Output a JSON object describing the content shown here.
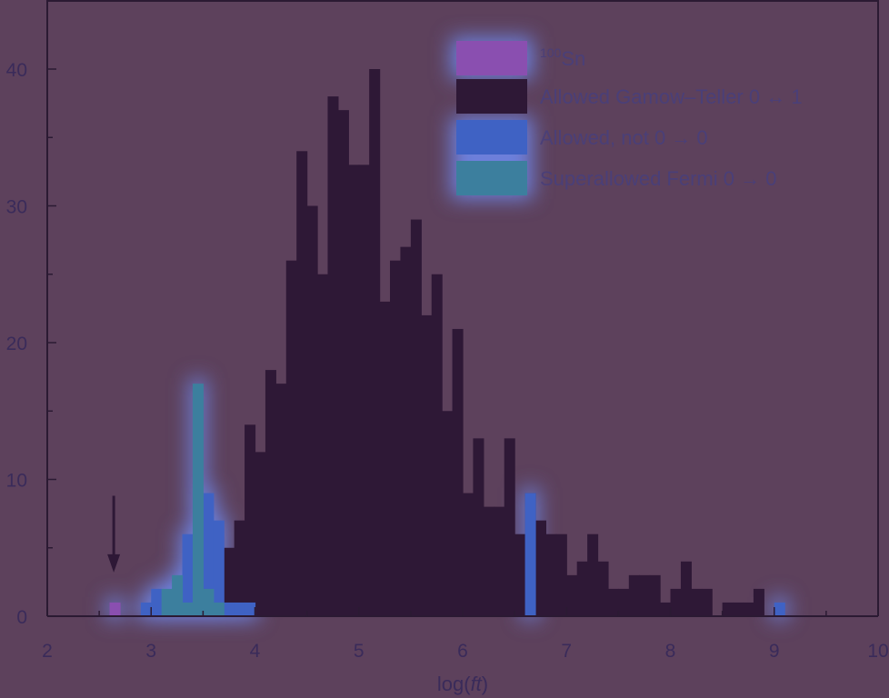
{
  "colors": {
    "background": "#5d415c",
    "axis": "#2b1a33",
    "text": "#3a2b5a",
    "sn100": "#8a4fb0",
    "allowed_gt": "#2e1836",
    "allowed_not00": "#3f62c4",
    "superallowed": "#3c7f9e",
    "glow": "#6f86e8"
  },
  "chart_data": {
    "type": "bar",
    "xlabel": "log(ft)",
    "ylabel": "",
    "xlim": [
      2,
      10
    ],
    "ylim": [
      0,
      40
    ],
    "xticks": [
      2,
      3,
      4,
      5,
      6,
      7,
      8,
      9,
      10
    ],
    "yticks": [
      0,
      10,
      20,
      30,
      40
    ],
    "bin_width": 0.1,
    "legend_position": "top-right",
    "legend": [
      {
        "key": "sn100",
        "sup": "100",
        "label": "Sn"
      },
      {
        "key": "allowed_gt",
        "sup": "",
        "label": "Allowed Gamow–Teller 0 ↔ 1"
      },
      {
        "key": "allowed_not00",
        "sup": "",
        "label": "Allowed, not 0 → 0"
      },
      {
        "key": "superallowed",
        "sup": "",
        "label": "Superallowed Fermi 0 → 0"
      }
    ],
    "series": [
      {
        "key": "sn100",
        "name": "100Sn",
        "bins": [
          [
            2.6,
            1
          ]
        ]
      },
      {
        "key": "allowed_gt",
        "name": "Allowed Gamow–Teller 0 ↔ 1",
        "bins": [
          [
            3.7,
            5
          ],
          [
            3.8,
            7
          ],
          [
            3.9,
            14
          ],
          [
            4.0,
            12
          ],
          [
            4.1,
            18
          ],
          [
            4.2,
            17
          ],
          [
            4.3,
            26
          ],
          [
            4.4,
            34
          ],
          [
            4.5,
            30
          ],
          [
            4.6,
            25
          ],
          [
            4.7,
            38
          ],
          [
            4.8,
            37
          ],
          [
            4.9,
            33
          ],
          [
            5.0,
            33
          ],
          [
            5.1,
            40
          ],
          [
            5.2,
            23
          ],
          [
            5.3,
            26
          ],
          [
            5.4,
            27
          ],
          [
            5.5,
            29
          ],
          [
            5.6,
            22
          ],
          [
            5.7,
            25
          ],
          [
            5.8,
            15
          ],
          [
            5.9,
            21
          ],
          [
            6.0,
            9
          ],
          [
            6.1,
            13
          ],
          [
            6.2,
            8
          ],
          [
            6.3,
            8
          ],
          [
            6.4,
            13
          ],
          [
            6.5,
            6
          ],
          [
            6.6,
            9
          ],
          [
            6.7,
            7
          ],
          [
            6.8,
            6
          ],
          [
            6.9,
            6
          ],
          [
            7.0,
            3
          ],
          [
            7.1,
            4
          ],
          [
            7.2,
            6
          ],
          [
            7.3,
            4
          ],
          [
            7.4,
            2
          ],
          [
            7.5,
            2
          ],
          [
            7.6,
            3
          ],
          [
            7.7,
            3
          ],
          [
            7.8,
            3
          ],
          [
            7.9,
            1
          ],
          [
            8.0,
            2
          ],
          [
            8.1,
            4
          ],
          [
            8.2,
            2
          ],
          [
            8.3,
            2
          ],
          [
            8.5,
            1
          ],
          [
            8.6,
            1
          ],
          [
            8.7,
            1
          ],
          [
            8.8,
            2
          ]
        ]
      },
      {
        "key": "allowed_not00",
        "name": "Allowed, not 0 → 0",
        "bins": [
          [
            2.9,
            1
          ],
          [
            3.0,
            2
          ],
          [
            3.1,
            1
          ],
          [
            3.2,
            2
          ],
          [
            3.3,
            6
          ],
          [
            3.4,
            5
          ],
          [
            3.5,
            9
          ],
          [
            3.6,
            7
          ],
          [
            3.7,
            1
          ],
          [
            3.8,
            1
          ],
          [
            3.9,
            1
          ],
          [
            6.6,
            9
          ],
          [
            9.0,
            1
          ]
        ]
      },
      {
        "key": "superallowed",
        "name": "Superallowed Fermi 0 → 0",
        "bins": [
          [
            3.1,
            2
          ],
          [
            3.2,
            3
          ],
          [
            3.3,
            1
          ],
          [
            3.4,
            17
          ],
          [
            3.5,
            2
          ],
          [
            3.6,
            1
          ]
        ]
      }
    ]
  },
  "annotation": {
    "arrow_x": 2.64,
    "arrow_from_y": 8.8,
    "arrow_to_y": 3.2
  }
}
